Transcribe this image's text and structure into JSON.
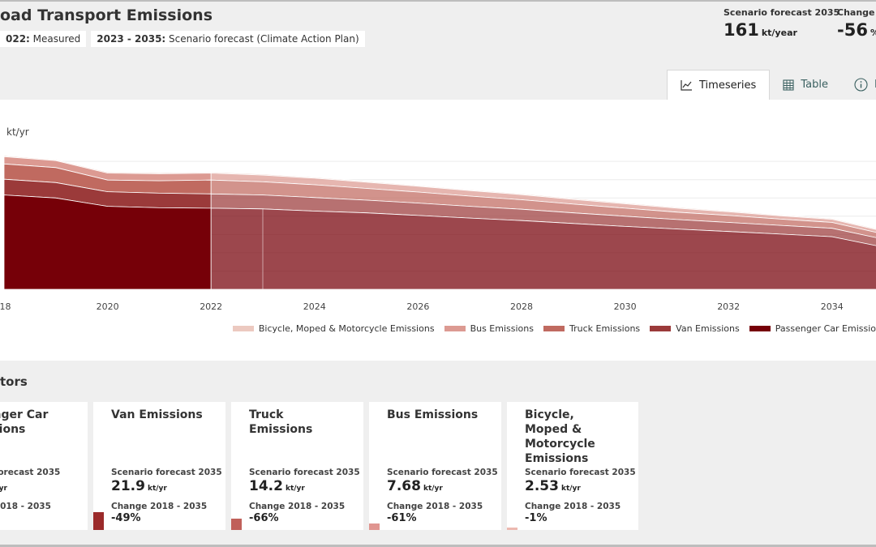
{
  "header": {
    "title": "oad Transport Emissions",
    "pills": [
      {
        "bold": "022:",
        "text": " Measured"
      },
      {
        "bold": "2023 - 2035:",
        "text": " Scenario forecast (Climate Action Plan)"
      }
    ],
    "stats": [
      {
        "label": "Scenario forecast 2035",
        "value": "161",
        "unit": "kt/year"
      },
      {
        "label": "Change 2",
        "value": "-56",
        "unit": "%"
      }
    ]
  },
  "tabs": [
    {
      "label": "Timeseries",
      "icon": "line-chart-icon",
      "active": true
    },
    {
      "label": "Table",
      "icon": "table-icon",
      "active": false
    },
    {
      "label": "D",
      "icon": "info-icon",
      "active": false
    }
  ],
  "chart_data": {
    "type": "area",
    "stacked": true,
    "ylabel": "kt/yr",
    "x": [
      2018,
      2019,
      2020,
      2021,
      2022,
      2023,
      2024,
      2025,
      2026,
      2027,
      2028,
      2029,
      2030,
      2031,
      2032,
      2033,
      2034,
      2035
    ],
    "x_ticks": [
      "018",
      "2020",
      "2022",
      "2024",
      "2026",
      "2028",
      "2030",
      "2032",
      "2034"
    ],
    "measured_until": 2022,
    "series": [
      {
        "name": "Passenger Car Emissio",
        "color": "#760008",
        "values": [
          258,
          250,
          227,
          223,
          222,
          220,
          214,
          209,
          202,
          195,
          188,
          180,
          172,
          165,
          158,
          151,
          144,
          115
        ]
      },
      {
        "name": "Van Emissions",
        "color": "#9b3a3a",
        "values": [
          43,
          42,
          40,
          40,
          39,
          38,
          37,
          35,
          34,
          32,
          31,
          29,
          28,
          26,
          25,
          24,
          23,
          21.9
        ]
      },
      {
        "name": "Truck Emissions",
        "color": "#c06a60",
        "values": [
          42,
          41,
          32,
          34,
          38,
          36,
          35,
          32,
          30,
          28,
          26,
          24,
          22,
          20,
          19,
          17,
          16,
          14.2
        ]
      },
      {
        "name": "Bus Emissions",
        "color": "#dc9a92",
        "values": [
          20,
          19,
          19,
          19,
          19,
          18.5,
          18,
          17,
          16,
          15,
          14,
          13,
          12,
          11,
          10,
          9,
          8.5,
          7.68
        ]
      },
      {
        "name": "Bicycle, Moped & Motorcycle Emissions",
        "color": "#ecc9c0",
        "values": [
          2.6,
          2.6,
          2.55,
          2.55,
          2.55,
          2.55,
          2.55,
          2.55,
          2.54,
          2.54,
          2.54,
          2.54,
          2.53,
          2.53,
          2.53,
          2.53,
          2.53,
          2.53
        ]
      }
    ]
  },
  "section": {
    "title": "tors"
  },
  "cards": [
    {
      "title": "enger Car\nssions",
      "forecast_label": "e forecast 2035",
      "forecast_value": "",
      "unit": "kt/yr",
      "change_label": "e 2018 - 2035",
      "change_value": "",
      "bar_color": "#760008",
      "bar_level": 0
    },
    {
      "title": "Van Emissions",
      "forecast_label": "Scenario forecast 2035",
      "forecast_value": "21.9",
      "unit": "kt/yr",
      "change_label": "Change 2018 - 2035",
      "change_value": "-49%",
      "bar_color": "#9b2a2a",
      "bar_level": 0.22
    },
    {
      "title": "Truck Emissions",
      "forecast_label": "Scenario forecast 2035",
      "forecast_value": "14.2",
      "unit": "kt/yr",
      "change_label": "Change 2018 - 2035",
      "change_value": "-66%",
      "bar_color": "#c0605a",
      "bar_level": 0.14
    },
    {
      "title": "Bus Emissions",
      "forecast_label": "Scenario forecast 2035",
      "forecast_value": "7.68",
      "unit": "kt/yr",
      "change_label": "Change 2018 - 2035",
      "change_value": "-61%",
      "bar_color": "#e09590",
      "bar_level": 0.08
    },
    {
      "title": "Bicycle, Moped &\nMotorcycle\nEmissions",
      "forecast_label": "Scenario forecast 2035",
      "forecast_value": "2.53",
      "unit": "kt/yr",
      "change_label": "Change 2018 - 2035",
      "change_value": "-1%",
      "bar_color": "#ecb8b0",
      "bar_level": 0.03
    }
  ]
}
